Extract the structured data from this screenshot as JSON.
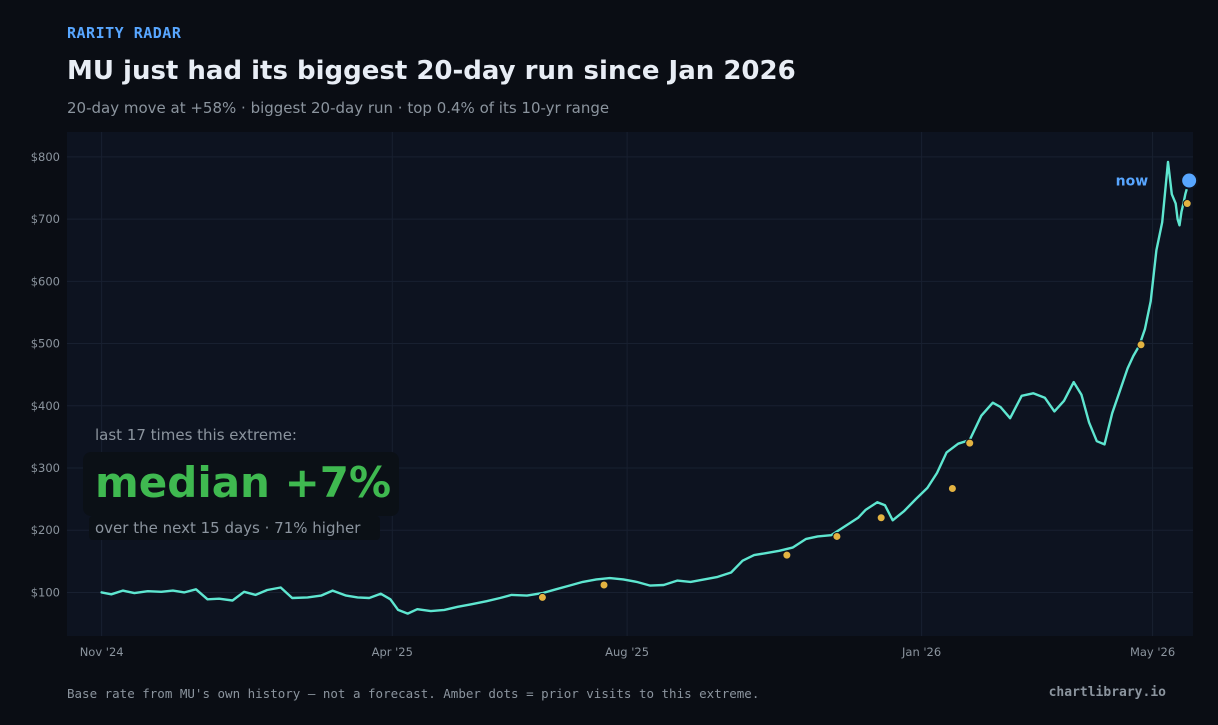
{
  "header": {
    "kicker": "RARITY RADAR",
    "title": "MU just had its biggest 20-day run since Jan 2026",
    "subtitle": "20-day move at +58%  ·  biggest 20-day run  ·  top 0.4% of its 10-yr range"
  },
  "stat": {
    "label": "last 17 times this extreme:",
    "value": "median +7%",
    "footnote": "over the next 15 days  ·  71% higher"
  },
  "footer": {
    "note": "Base rate from MU's own history — not a forecast. Amber dots = prior visits to this extreme.",
    "brand": "chartlibrary.io"
  },
  "colors": {
    "background": "#0a0d14",
    "plot_background": "#0d1320",
    "line": "#5ee6d0",
    "marker": "#e3b341",
    "now_marker": "#58a6ff",
    "accent_green": "#3fb950",
    "muted_text": "#8b949e"
  },
  "chart_data": {
    "type": "line",
    "title": "",
    "xlabel": "",
    "ylabel": "",
    "ylim": [
      30,
      840
    ],
    "xlim": [
      "2024-10-14",
      "2026-05-22"
    ],
    "grid": true,
    "y_ticks": [
      100,
      200,
      300,
      400,
      500,
      600,
      700,
      800
    ],
    "y_tick_labels": [
      "$100",
      "$200",
      "$300",
      "$400",
      "$500",
      "$600",
      "$700",
      "$800"
    ],
    "x_ticks": [
      "2024-11-01",
      "2025-04-01",
      "2025-08-01",
      "2026-01-01",
      "2026-05-01"
    ],
    "x_tick_labels": [
      "Nov '24",
      "Apr '25",
      "Aug '25",
      "Jan '26",
      "May '26"
    ],
    "series": [
      {
        "points": [
          [
            "2024-11-01",
            100
          ],
          [
            "2024-11-06",
            97
          ],
          [
            "2024-11-12",
            103
          ],
          [
            "2024-11-18",
            99
          ],
          [
            "2024-11-25",
            102
          ],
          [
            "2024-12-02",
            101
          ],
          [
            "2024-12-08",
            103
          ],
          [
            "2024-12-14",
            100
          ],
          [
            "2024-12-20",
            105
          ],
          [
            "2024-12-26",
            89
          ],
          [
            "2025-01-01",
            90
          ],
          [
            "2025-01-08",
            87
          ],
          [
            "2025-01-14",
            101
          ],
          [
            "2025-01-20",
            96
          ],
          [
            "2025-01-26",
            104
          ],
          [
            "2025-02-02",
            108
          ],
          [
            "2025-02-08",
            91
          ],
          [
            "2025-02-16",
            92
          ],
          [
            "2025-02-23",
            95
          ],
          [
            "2025-03-01",
            103
          ],
          [
            "2025-03-08",
            95
          ],
          [
            "2025-03-14",
            92
          ],
          [
            "2025-03-20",
            91
          ],
          [
            "2025-03-26",
            98
          ],
          [
            "2025-03-31",
            89
          ],
          [
            "2025-04-04",
            72
          ],
          [
            "2025-04-09",
            66
          ],
          [
            "2025-04-14",
            73
          ],
          [
            "2025-04-21",
            70
          ],
          [
            "2025-04-28",
            72
          ],
          [
            "2025-05-05",
            77
          ],
          [
            "2025-05-12",
            81
          ],
          [
            "2025-05-20",
            86
          ],
          [
            "2025-05-27",
            91
          ],
          [
            "2025-06-02",
            96
          ],
          [
            "2025-06-10",
            95
          ],
          [
            "2025-06-18",
            99
          ],
          [
            "2025-06-25",
            105
          ],
          [
            "2025-07-02",
            111
          ],
          [
            "2025-07-09",
            117
          ],
          [
            "2025-07-16",
            121
          ],
          [
            "2025-07-23",
            123
          ],
          [
            "2025-07-30",
            121
          ],
          [
            "2025-08-06",
            117
          ],
          [
            "2025-08-13",
            111
          ],
          [
            "2025-08-20",
            112
          ],
          [
            "2025-08-27",
            119
          ],
          [
            "2025-09-03",
            117
          ],
          [
            "2025-09-10",
            121
          ],
          [
            "2025-09-17",
            125
          ],
          [
            "2025-09-24",
            132
          ],
          [
            "2025-09-30",
            151
          ],
          [
            "2025-10-06",
            160
          ],
          [
            "2025-10-12",
            163
          ],
          [
            "2025-10-19",
            167
          ],
          [
            "2025-10-26",
            172
          ],
          [
            "2025-11-02",
            186
          ],
          [
            "2025-11-08",
            190
          ],
          [
            "2025-11-15",
            192
          ],
          [
            "2025-11-22",
            206
          ],
          [
            "2025-11-29",
            220
          ],
          [
            "2025-12-03",
            233
          ],
          [
            "2025-12-09",
            245
          ],
          [
            "2025-12-13",
            240
          ],
          [
            "2025-12-17",
            216
          ],
          [
            "2025-12-23",
            231
          ],
          [
            "2025-12-29",
            250
          ],
          [
            "2026-01-04",
            268
          ],
          [
            "2026-01-09",
            292
          ],
          [
            "2026-01-14",
            325
          ],
          [
            "2026-01-20",
            339
          ],
          [
            "2026-01-26",
            345
          ],
          [
            "2026-02-01",
            384
          ],
          [
            "2026-02-07",
            405
          ],
          [
            "2026-02-11",
            398
          ],
          [
            "2026-02-16",
            380
          ],
          [
            "2026-02-22",
            416
          ],
          [
            "2026-02-28",
            420
          ],
          [
            "2026-03-06",
            413
          ],
          [
            "2026-03-11",
            391
          ],
          [
            "2026-03-16",
            408
          ],
          [
            "2026-03-21",
            438
          ],
          [
            "2026-03-25",
            418
          ],
          [
            "2026-03-29",
            373
          ],
          [
            "2026-04-02",
            343
          ],
          [
            "2026-04-06",
            338
          ],
          [
            "2026-04-10",
            388
          ],
          [
            "2026-04-14",
            424
          ],
          [
            "2026-04-18",
            460
          ],
          [
            "2026-04-21",
            480
          ],
          [
            "2026-04-24",
            496
          ],
          [
            "2026-04-27",
            523
          ],
          [
            "2026-04-30",
            568
          ],
          [
            "2026-05-03",
            650
          ],
          [
            "2026-05-06",
            695
          ],
          [
            "2026-05-09",
            792
          ],
          [
            "2026-05-11",
            740
          ],
          [
            "2026-05-13",
            725
          ],
          [
            "2026-05-14",
            700
          ],
          [
            "2026-05-15",
            690
          ],
          [
            "2026-05-16",
            712
          ],
          [
            "2026-05-17",
            725
          ],
          [
            "2026-05-18",
            740
          ],
          [
            "2026-05-20",
            762
          ]
        ]
      }
    ],
    "markers": [
      [
        "2025-06-18",
        92
      ],
      [
        "2025-07-20",
        112
      ],
      [
        "2025-10-23",
        160
      ],
      [
        "2025-11-18",
        190
      ],
      [
        "2025-12-11",
        220
      ],
      [
        "2026-01-17",
        267
      ],
      [
        "2026-01-26",
        340
      ],
      [
        "2026-04-25",
        498
      ],
      [
        "2026-05-19",
        725
      ]
    ],
    "current_point": {
      "label": "now",
      "x": "2026-05-20",
      "y": 762
    }
  }
}
